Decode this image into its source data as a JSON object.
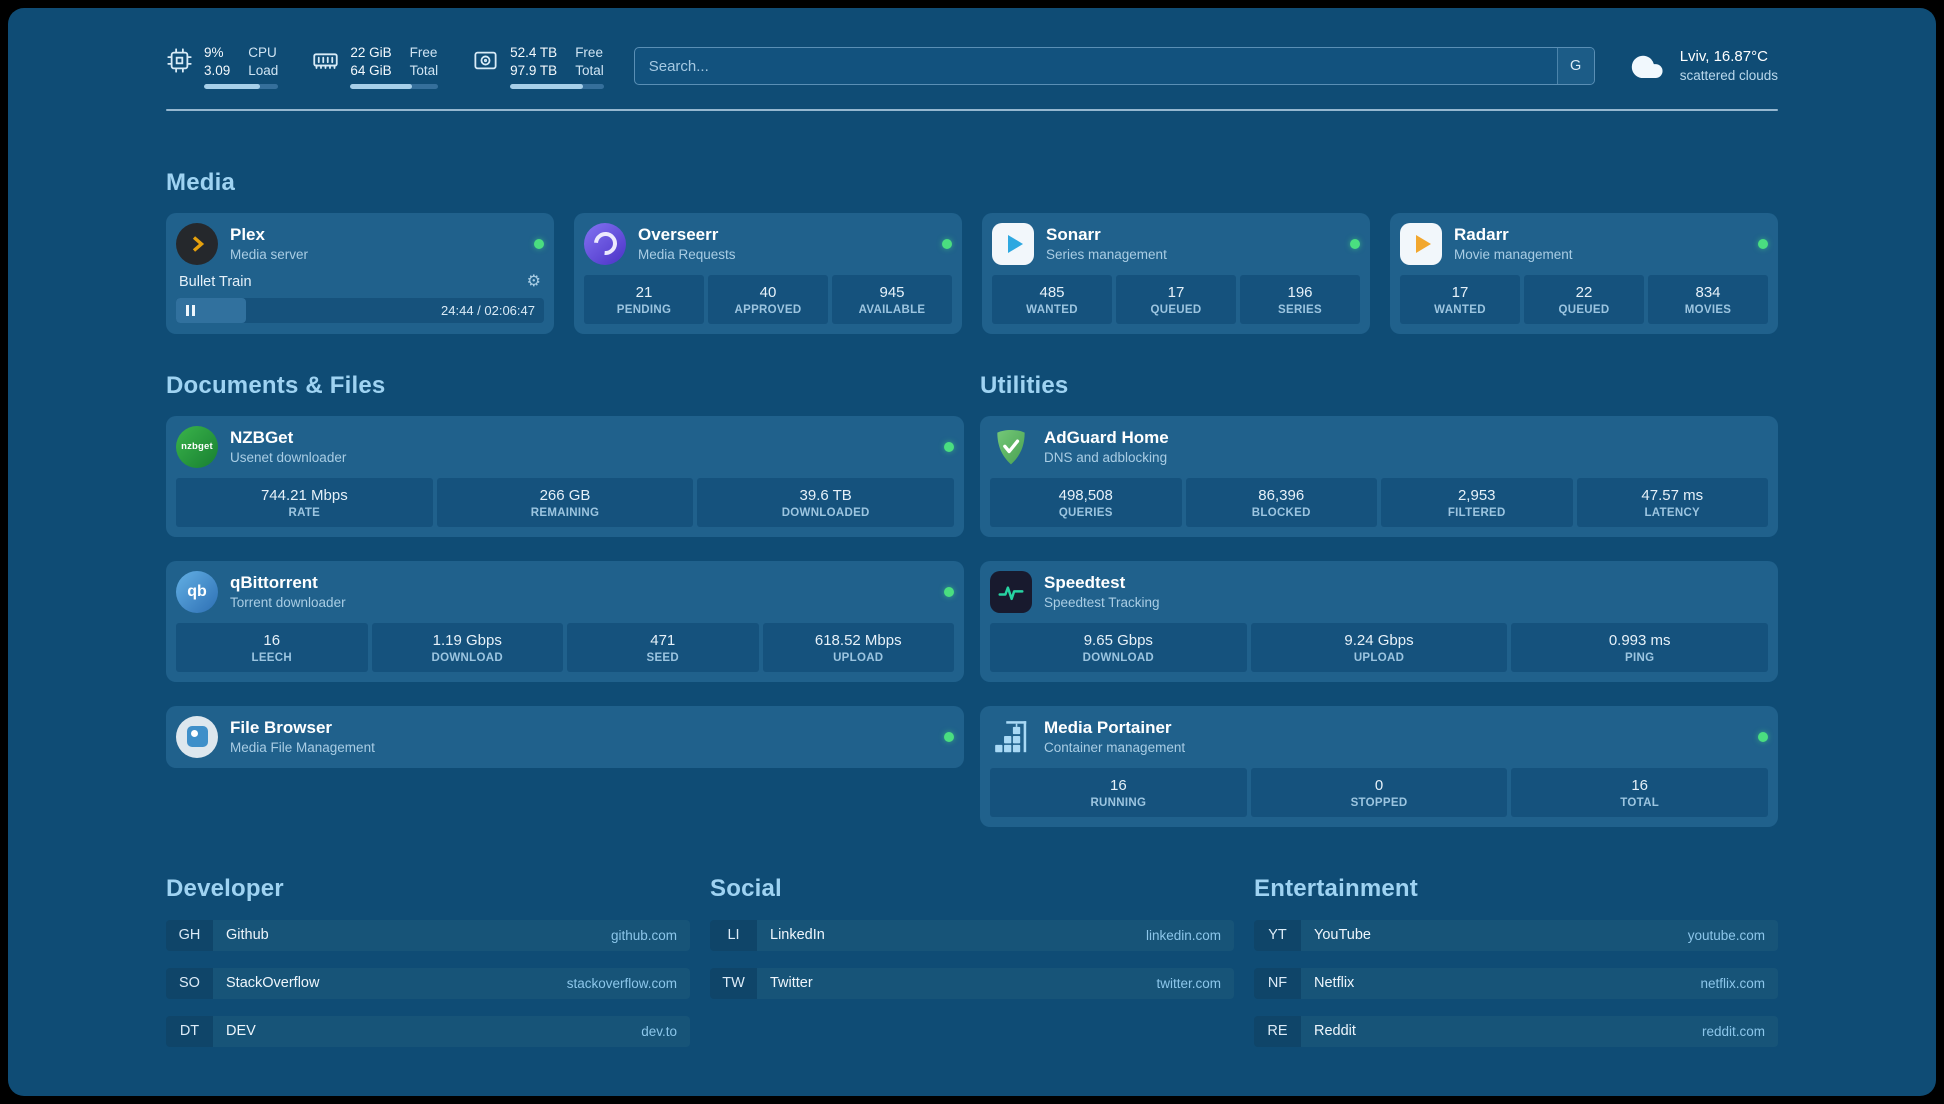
{
  "colors": {
    "background": "#0f4c75",
    "card": "#20618c",
    "stat_block": "#15527d",
    "heading": "#9fd3f2",
    "status_online": "#4ade80",
    "url_text": "#8cc6ea",
    "plex_accent": "#e5a00d",
    "overseerr_accent": "#6a52e0",
    "sonarr_accent": "#2ea8e0",
    "radarr_accent": "#f2a72e",
    "nzbget_accent": "#2da344",
    "qbittorrent_accent": "#3f86c6",
    "adguard_accent": "#63b863",
    "speedtest_accent": "#27d3a2",
    "portainer_accent": "#a9d9f5"
  },
  "topbar": {
    "cpu": {
      "value_top": "9%",
      "value_bottom": "3.09",
      "label_top": "CPU",
      "label_bottom": "Load",
      "bar_percent": 75
    },
    "memory": {
      "value_top": "22 GiB",
      "value_bottom": "64 GiB",
      "label_top": "Free",
      "label_bottom": "Total",
      "bar_percent": 70
    },
    "disk": {
      "value_top": "52.4 TB",
      "value_bottom": "97.9 TB",
      "label_top": "Free",
      "label_bottom": "Total",
      "bar_percent": 78
    },
    "search": {
      "placeholder": "Search...",
      "provider": "G"
    },
    "weather": {
      "location": "Lviv, 16.87°C",
      "condition": "scattered clouds"
    }
  },
  "media": {
    "title": "Media",
    "plex": {
      "name": "Plex",
      "subtitle": "Media server",
      "status": "online",
      "now_playing": "Bullet Train",
      "time": "24:44 / 02:06:47",
      "progress_percent": 19
    },
    "overseerr": {
      "name": "Overseerr",
      "subtitle": "Media Requests",
      "status": "online",
      "stats": [
        {
          "value": "21",
          "label": "PENDING"
        },
        {
          "value": "40",
          "label": "APPROVED"
        },
        {
          "value": "945",
          "label": "AVAILABLE"
        }
      ]
    },
    "sonarr": {
      "name": "Sonarr",
      "subtitle": "Series management",
      "status": "online",
      "stats": [
        {
          "value": "485",
          "label": "WANTED"
        },
        {
          "value": "17",
          "label": "QUEUED"
        },
        {
          "value": "196",
          "label": "SERIES"
        }
      ]
    },
    "radarr": {
      "name": "Radarr",
      "subtitle": "Movie management",
      "status": "online",
      "stats": [
        {
          "value": "17",
          "label": "WANTED"
        },
        {
          "value": "22",
          "label": "QUEUED"
        },
        {
          "value": "834",
          "label": "MOVIES"
        }
      ]
    }
  },
  "documents": {
    "title": "Documents & Files",
    "nzbget": {
      "name": "NZBGet",
      "subtitle": "Usenet downloader",
      "status": "online",
      "icon_text": "nzbget",
      "stats": [
        {
          "value": "744.21 Mbps",
          "label": "RATE"
        },
        {
          "value": "266 GB",
          "label": "REMAINING"
        },
        {
          "value": "39.6 TB",
          "label": "DOWNLOADED"
        }
      ]
    },
    "qbittorrent": {
      "name": "qBittorrent",
      "subtitle": "Torrent downloader",
      "status": "online",
      "icon_text": "qb",
      "stats": [
        {
          "value": "16",
          "label": "LEECH"
        },
        {
          "value": "1.19 Gbps",
          "label": "DOWNLOAD"
        },
        {
          "value": "471",
          "label": "SEED"
        },
        {
          "value": "618.52 Mbps",
          "label": "UPLOAD"
        }
      ]
    },
    "filebrowser": {
      "name": "File Browser",
      "subtitle": "Media File Management",
      "status": "online"
    }
  },
  "utilities": {
    "title": "Utilities",
    "adguard": {
      "name": "AdGuard Home",
      "subtitle": "DNS and adblocking",
      "stats": [
        {
          "value": "498,508",
          "label": "QUERIES"
        },
        {
          "value": "86,396",
          "label": "BLOCKED"
        },
        {
          "value": "2,953",
          "label": "FILTERED"
        },
        {
          "value": "47.57 ms",
          "label": "LATENCY"
        }
      ]
    },
    "speedtest": {
      "name": "Speedtest",
      "subtitle": "Speedtest Tracking",
      "stats": [
        {
          "value": "9.65 Gbps",
          "label": "DOWNLOAD"
        },
        {
          "value": "9.24 Gbps",
          "label": "UPLOAD"
        },
        {
          "value": "0.993 ms",
          "label": "PING"
        }
      ]
    },
    "portainer": {
      "name": "Media Portainer",
      "subtitle": "Container management",
      "status": "online",
      "stats": [
        {
          "value": "16",
          "label": "RUNNING"
        },
        {
          "value": "0",
          "label": "STOPPED"
        },
        {
          "value": "16",
          "label": "TOTAL"
        }
      ]
    }
  },
  "bookmarks": [
    {
      "title": "Developer",
      "items": [
        {
          "abbr": "GH",
          "name": "Github",
          "url": "github.com"
        },
        {
          "abbr": "SO",
          "name": "StackOverflow",
          "url": "stackoverflow.com"
        },
        {
          "abbr": "DT",
          "name": "DEV",
          "url": "dev.to"
        }
      ]
    },
    {
      "title": "Social",
      "items": [
        {
          "abbr": "LI",
          "name": "LinkedIn",
          "url": "linkedin.com"
        },
        {
          "abbr": "TW",
          "name": "Twitter",
          "url": "twitter.com"
        }
      ]
    },
    {
      "title": "Entertainment",
      "items": [
        {
          "abbr": "YT",
          "name": "YouTube",
          "url": "youtube.com"
        },
        {
          "abbr": "NF",
          "name": "Netflix",
          "url": "netflix.com"
        },
        {
          "abbr": "RE",
          "name": "Reddit",
          "url": "reddit.com"
        }
      ]
    }
  ]
}
